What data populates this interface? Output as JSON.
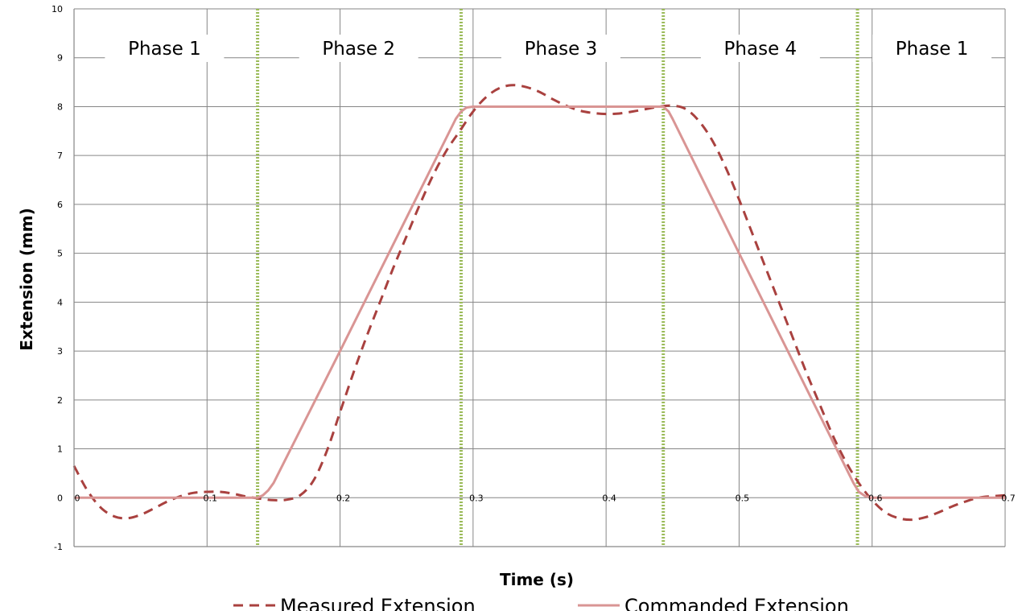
{
  "chart_data": {
    "type": "line",
    "xlabel": "Time (s)",
    "ylabel": "Extension (mm)",
    "xlim": [
      0,
      0.7
    ],
    "ylim": [
      -1,
      10
    ],
    "x_ticks": [
      "0",
      "0.1",
      "0.2",
      "0.3",
      "0.4",
      "0.5",
      "0.6",
      "0.7"
    ],
    "y_ticks": [
      "-1",
      "0",
      "1",
      "2",
      "3",
      "4",
      "5",
      "6",
      "7",
      "8",
      "9",
      "10"
    ],
    "grid": true,
    "legend_position": "bottom",
    "phase_boundaries": [
      0.138,
      0.291,
      0.443,
      0.589
    ],
    "phase_boundary_color": "#9bbb59",
    "phases": [
      {
        "label": "Phase 1",
        "x_center": 0.068
      },
      {
        "label": "Phase 2",
        "x_center": 0.214
      },
      {
        "label": "Phase 3",
        "x_center": 0.366
      },
      {
        "label": "Phase 4",
        "x_center": 0.516
      },
      {
        "label": "Phase 1",
        "x_center": 0.645
      }
    ],
    "series": [
      {
        "name": "Measured Extension",
        "style": "dashed",
        "color": "#a9413f",
        "x": [
          0,
          0.01,
          0.02,
          0.03,
          0.04,
          0.05,
          0.06,
          0.07,
          0.08,
          0.09,
          0.1,
          0.11,
          0.12,
          0.13,
          0.14,
          0.15,
          0.16,
          0.17,
          0.18,
          0.19,
          0.2,
          0.21,
          0.22,
          0.23,
          0.24,
          0.25,
          0.26,
          0.27,
          0.28,
          0.29,
          0.3,
          0.31,
          0.32,
          0.33,
          0.34,
          0.35,
          0.36,
          0.37,
          0.38,
          0.39,
          0.4,
          0.41,
          0.42,
          0.43,
          0.44,
          0.45,
          0.46,
          0.47,
          0.48,
          0.49,
          0.5,
          0.51,
          0.52,
          0.53,
          0.54,
          0.55,
          0.56,
          0.57,
          0.58,
          0.59,
          0.6,
          0.61,
          0.62,
          0.63,
          0.64,
          0.65,
          0.66,
          0.67,
          0.68,
          0.69,
          0.7
        ],
        "y": [
          0.65,
          0.15,
          -0.2,
          -0.38,
          -0.42,
          -0.35,
          -0.22,
          -0.08,
          0.03,
          0.1,
          0.12,
          0.12,
          0.08,
          0.02,
          -0.02,
          -0.05,
          -0.04,
          0.05,
          0.35,
          0.95,
          1.75,
          2.55,
          3.3,
          4.0,
          4.7,
          5.35,
          6.0,
          6.6,
          7.1,
          7.5,
          7.9,
          8.2,
          8.38,
          8.44,
          8.4,
          8.3,
          8.15,
          8.02,
          7.92,
          7.87,
          7.85,
          7.86,
          7.9,
          7.95,
          8.0,
          8.02,
          7.95,
          7.7,
          7.3,
          6.75,
          6.1,
          5.4,
          4.7,
          4.0,
          3.3,
          2.6,
          1.95,
          1.3,
          0.75,
          0.3,
          -0.05,
          -0.3,
          -0.42,
          -0.45,
          -0.4,
          -0.3,
          -0.18,
          -0.08,
          0.0,
          0.03,
          0.05
        ]
      },
      {
        "name": "Commanded Extension",
        "style": "solid",
        "color": "#d99594",
        "x": [
          0,
          0.138,
          0.142,
          0.146,
          0.15,
          0.2,
          0.287,
          0.291,
          0.295,
          0.3,
          0.443,
          0.447,
          0.45,
          0.5,
          0.586,
          0.59,
          0.595,
          0.6,
          0.7
        ],
        "y": [
          0,
          0,
          0.05,
          0.15,
          0.3,
          3.0,
          7.75,
          7.9,
          7.98,
          8.0,
          8.0,
          7.9,
          7.75,
          5.0,
          0.3,
          0.12,
          0.03,
          0.0,
          0.0
        ]
      }
    ]
  }
}
